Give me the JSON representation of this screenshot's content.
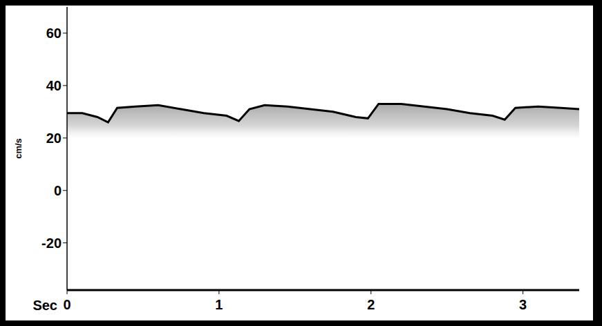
{
  "chart_data": {
    "type": "area",
    "x_label": "Sec",
    "y_label": "cm/s",
    "x": [
      0,
      0.1,
      0.2,
      0.27,
      0.33,
      0.45,
      0.6,
      0.75,
      0.9,
      1.05,
      1.13,
      1.2,
      1.3,
      1.45,
      1.6,
      1.75,
      1.9,
      1.98,
      2.05,
      2.2,
      2.35,
      2.5,
      2.65,
      2.8,
      2.88,
      2.95,
      3.1,
      3.25,
      3.37
    ],
    "values": [
      29.5,
      29.5,
      28,
      26,
      31.5,
      32,
      32.5,
      31,
      29.5,
      28.5,
      26.5,
      31,
      32.5,
      32,
      31,
      30,
      28,
      27.5,
      33,
      33,
      32,
      31,
      29.5,
      28.5,
      27,
      31.5,
      32,
      31.5,
      31
    ],
    "color": "#000000",
    "xlim": [
      0,
      3.37
    ],
    "xticks": [
      0,
      1,
      2,
      3
    ],
    "ylim": [
      -38,
      70
    ],
    "yticks": [
      -20,
      0,
      20,
      40,
      60
    ],
    "grid": false
  }
}
